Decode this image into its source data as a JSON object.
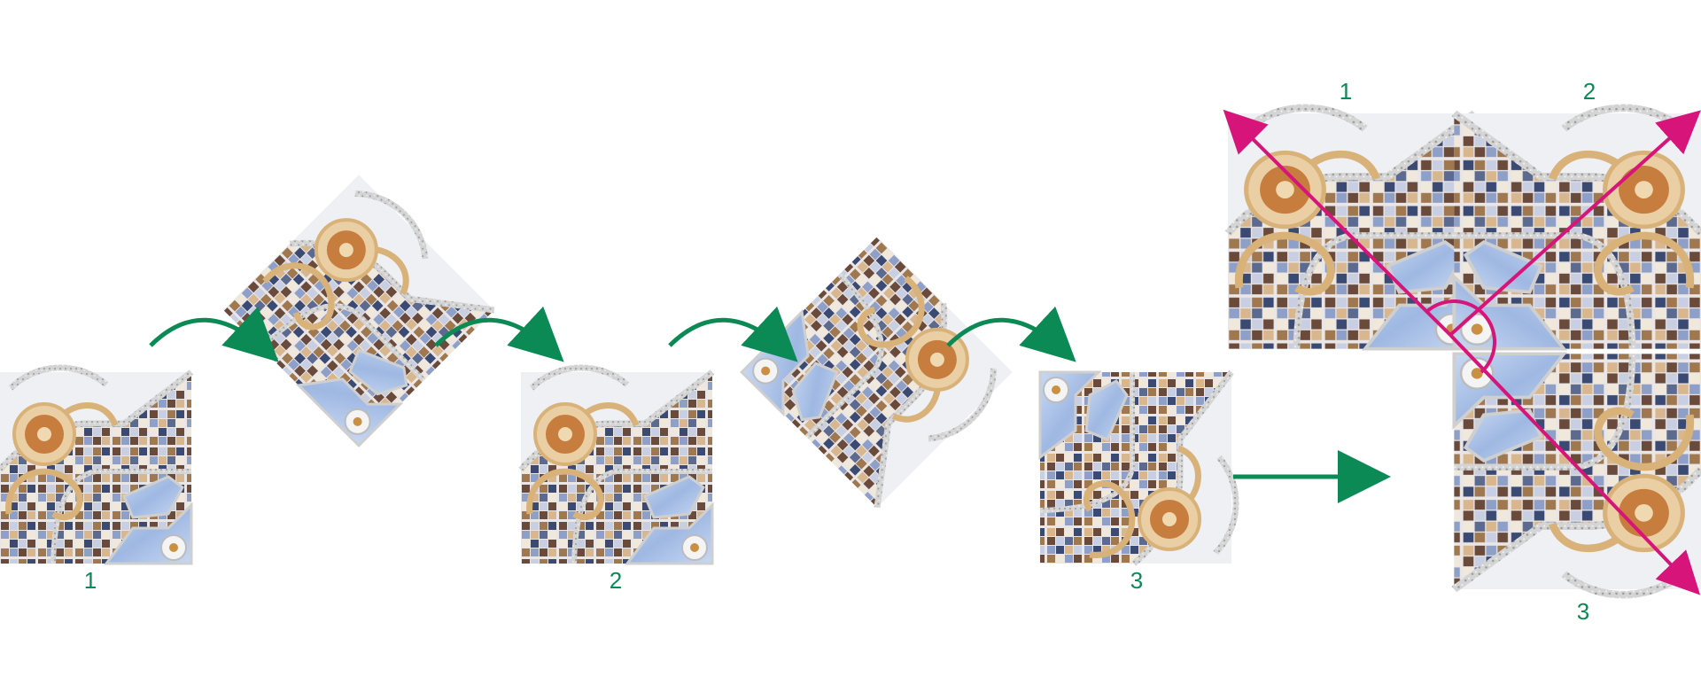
{
  "colors": {
    "arrow_green": "#0b8a55",
    "axis_magenta": "#d6147a",
    "tile_background": "#eef0f4",
    "mosaic": [
      "#6a4a3a",
      "#a07850",
      "#d9b78e",
      "#3b4a72",
      "#8fa0c8",
      "#c9cfe2",
      "#f0e8da",
      "#5d6a90"
    ],
    "marble_blue": "#a9c1e6",
    "ornament_gold": "#d9b27a",
    "ornament_brown": "#b8733a",
    "border_grey": "#c8c8c8"
  },
  "steps": [
    {
      "label": "1"
    },
    {
      "label": "2"
    },
    {
      "label": "3"
    }
  ],
  "assembled": {
    "labels": [
      "1",
      "2",
      "3"
    ]
  },
  "icons": {
    "curved_arrow": "curved-arrow-icon",
    "straight_arrow": "arrow-right-icon",
    "symmetry_axis": "double-arrow-axis",
    "rotation_mark": "rotation-arc-icon"
  }
}
